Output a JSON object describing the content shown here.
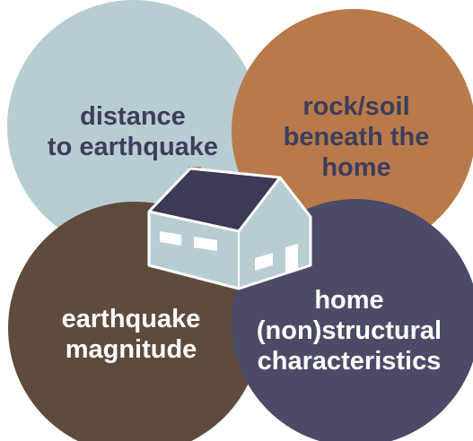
{
  "colors": {
    "distance_circle": "#b8cdd2",
    "soil_circle": "#b87a4b",
    "magnitude_circle": "#5f4b3d",
    "home_circle": "#4a4b66",
    "distance_text": "#3d3d5c",
    "soil_text": "#3d3d5c",
    "magnitude_text": "#ffffff",
    "home_text": "#ffffff",
    "house_wall": "#b8cdd2",
    "house_roof": "#3c3b55",
    "house_outline": "#ffffff",
    "chimney": "#b87a4b"
  },
  "factors": {
    "distance": {
      "lines": [
        "distance",
        "to earthquake"
      ]
    },
    "soil": {
      "lines": [
        "rock/soil",
        "beneath the",
        "home"
      ]
    },
    "magnitude": {
      "lines": [
        "earthquake",
        "magnitude"
      ]
    },
    "home": {
      "lines": [
        "home",
        "(non)structural",
        "characteristics"
      ]
    }
  },
  "icons": {
    "center": "house-icon"
  }
}
